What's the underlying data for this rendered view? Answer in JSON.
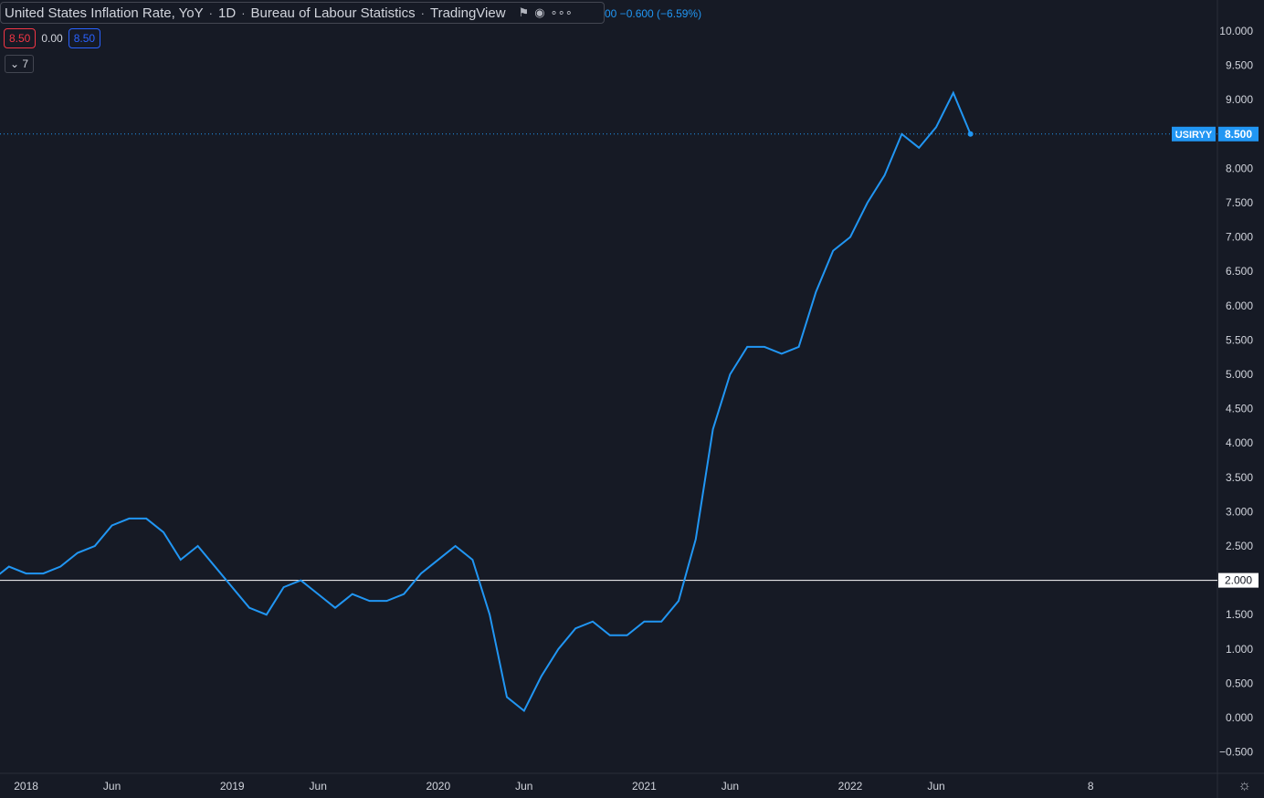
{
  "header": {
    "title": "United States Inflation Rate, YoY",
    "interval": "1D",
    "source": "Bureau of Labour Statistics",
    "publisher": "TradingView",
    "change_text": "00  −0.600 (−6.59%)"
  },
  "values_row": {
    "sell": "8.50",
    "spread": "0.00",
    "buy": "8.50"
  },
  "collapse": {
    "count": "7"
  },
  "colors": {
    "line": "#2196f3",
    "background": "#161a25",
    "ref_line": "#ffffff"
  },
  "chart_data": {
    "type": "line",
    "title": "United States Inflation Rate, YoY",
    "symbol": "USIRYY",
    "last_value_label": "8.500",
    "ref_line_label": "2.000",
    "ref_line_value": 2.0,
    "ylim": [
      -0.75,
      10.3
    ],
    "y_ticks": [
      "10.000",
      "9.500",
      "9.000",
      "8.000",
      "7.500",
      "7.000",
      "6.500",
      "6.000",
      "5.500",
      "5.000",
      "4.500",
      "4.000",
      "3.500",
      "3.000",
      "2.500",
      "1.500",
      "1.000",
      "0.500",
      "0.000",
      "−0.500"
    ],
    "y_tick_values": [
      10,
      9.5,
      9,
      8,
      7.5,
      7,
      6.5,
      6,
      5.5,
      5,
      4.5,
      4,
      3.5,
      3,
      2.5,
      1.5,
      1,
      0.5,
      0,
      -0.5
    ],
    "x_ticks": [
      {
        "label": "2018",
        "month": 2
      },
      {
        "label": "Jun",
        "month": 7
      },
      {
        "label": "2019",
        "month": 14
      },
      {
        "label": "Jun",
        "month": 19
      },
      {
        "label": "2020",
        "month": 26
      },
      {
        "label": "Jun",
        "month": 31
      },
      {
        "label": "2021",
        "month": 38
      },
      {
        "label": "Jun",
        "month": 43
      },
      {
        "label": "2022",
        "month": 50
      },
      {
        "label": "Jun",
        "month": 55
      },
      {
        "label": "8",
        "month": 64
      }
    ],
    "values": [
      2.0,
      2.2,
      2.1,
      2.1,
      2.2,
      2.4,
      2.5,
      2.8,
      2.9,
      2.9,
      2.7,
      2.3,
      2.5,
      2.2,
      1.9,
      1.6,
      1.5,
      1.9,
      2.0,
      1.8,
      1.6,
      1.8,
      1.7,
      1.7,
      1.8,
      2.1,
      2.3,
      2.5,
      2.3,
      1.5,
      0.3,
      0.1,
      0.6,
      1.0,
      1.3,
      1.4,
      1.2,
      1.2,
      1.4,
      1.4,
      1.7,
      2.6,
      4.2,
      5.0,
      5.4,
      5.4,
      5.3,
      5.4,
      6.2,
      6.8,
      7.0,
      7.5,
      7.9,
      8.5,
      8.3,
      8.6,
      9.1,
      8.5
    ]
  }
}
